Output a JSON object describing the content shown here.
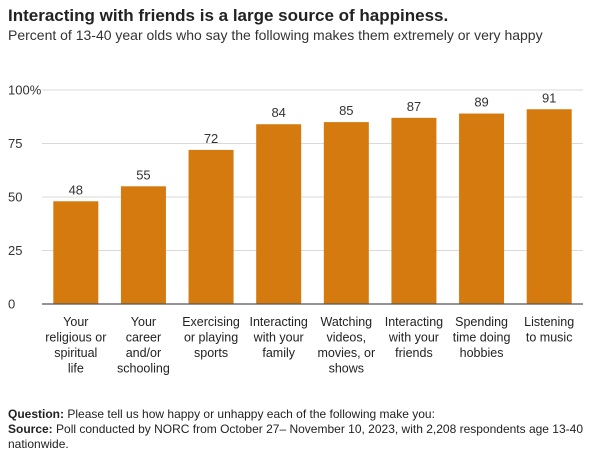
{
  "title": "Interacting with friends is a large source of happiness.",
  "subtitle": "Percent of 13-40 year olds who say the following makes them extremely or very happy",
  "colors": {
    "bar": "#d47a0f",
    "grid": "#d9d9d9",
    "axis": "#555555"
  },
  "chart_data": {
    "type": "bar",
    "categories": [
      [
        "Your",
        "religious or",
        "spiritual",
        "life"
      ],
      [
        "Your",
        "career",
        "and/or",
        "schooling"
      ],
      [
        "Exercising",
        "or playing",
        "sports"
      ],
      [
        "Interacting",
        "with your",
        "family"
      ],
      [
        "Watching",
        "videos,",
        "movies, or",
        "shows"
      ],
      [
        "Interacting",
        "with your",
        "friends"
      ],
      [
        "Spending",
        "time doing",
        "hobbies"
      ],
      [
        "Listening",
        "to music"
      ]
    ],
    "values": [
      48,
      55,
      72,
      84,
      85,
      87,
      89,
      91
    ],
    "ylim": [
      0,
      100
    ],
    "yticks": [
      0,
      25,
      50,
      75,
      100
    ],
    "ytick_labels": [
      "0",
      "25",
      "50",
      "75",
      "100%"
    ],
    "grid": true
  },
  "footer": {
    "question_label": "Question:",
    "question_text": "Please tell us how happy or unhappy each of the following make you:",
    "source_label": "Source:",
    "source_text": "Poll conducted by NORC from October 27– November 10, 2023, with 2,208 respondents age 13-40 nationwide."
  }
}
